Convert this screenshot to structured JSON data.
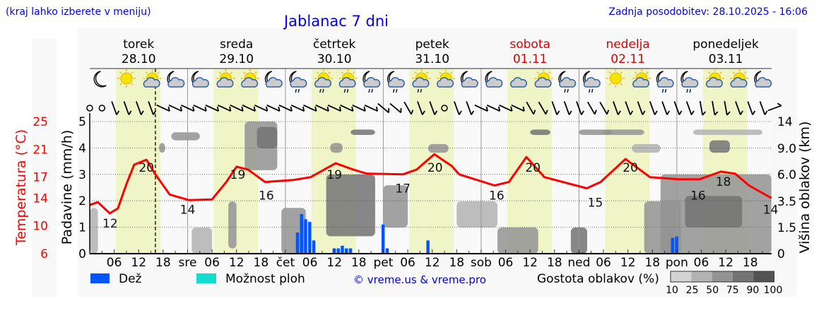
{
  "header": {
    "region_hint": "(kraj lahko izberete v meniju)",
    "title": "Jablanac 7 dni",
    "updated": "Zadnja posodobitev: 28.10.2025 - 16:06"
  },
  "days": [
    {
      "name": "torek",
      "date": "28.10",
      "abbr": "",
      "weekend": false,
      "icons": [
        "moon",
        "sun",
        "sun-cloud",
        "moon-cloud"
      ]
    },
    {
      "name": "sreda",
      "date": "29.10",
      "abbr": "sre",
      "weekend": false,
      "icons": [
        "moon-cloud",
        "sun-cloud",
        "sun-cloud",
        "moon-cloud"
      ]
    },
    {
      "name": "četrtek",
      "date": "30.10",
      "abbr": "čet",
      "weekend": false,
      "icons": [
        "moon-cloud-rain",
        "sun-cloud-rain",
        "sun-cloud-rain",
        "moon-cloud-rain"
      ]
    },
    {
      "name": "petek",
      "date": "31.10",
      "abbr": "pet",
      "weekend": false,
      "icons": [
        "moon-cloud-rain",
        "sun-cloud-rain",
        "sun-cloud",
        "moon-cloud"
      ]
    },
    {
      "name": "sobota",
      "date": "01.11",
      "abbr": "sob",
      "weekend": true,
      "icons": [
        "moon-cloud",
        "cloud",
        "sun-cloud",
        "moon-cloud-rain"
      ]
    },
    {
      "name": "nedelja",
      "date": "02.11",
      "abbr": "ned",
      "weekend": true,
      "icons": [
        "moon-cloud-rain",
        "sun",
        "sun-cloud",
        "moon-cloud-rain"
      ]
    },
    {
      "name": "ponedeljek",
      "date": "03.11",
      "abbr": "pon",
      "weekend": false,
      "icons": [
        "moon-cloud-rain",
        "sun-cloud",
        "sun-cloud",
        "moon-cloud"
      ]
    }
  ],
  "hour_labels": [
    "06",
    "12",
    "18"
  ],
  "colors": {
    "temp": "#ff0000",
    "rain": "#0055ff",
    "showers": "#11ddcc",
    "daylight": "#f0f5c8",
    "weekend": "#dd0000",
    "text_blue": "#0000ee"
  },
  "chart_data": {
    "type": "line",
    "title": "Jablanac 7 dni",
    "x_unit": "hours since 28.10 00:00",
    "xlim": [
      0,
      167.2
    ],
    "now_hour": 16.1,
    "daylight_hours": [
      6.4,
      17.3
    ],
    "temperature": {
      "label": "Temperatura (°C)",
      "ticks": [
        25,
        21,
        17,
        14,
        10,
        6
      ],
      "ylim": [
        6,
        25
      ],
      "points": [
        [
          0,
          13.0
        ],
        [
          2,
          13.4
        ],
        [
          4.9,
          11.8
        ],
        [
          6.9,
          12.5
        ],
        [
          9,
          16
        ],
        [
          10.9,
          18.8
        ],
        [
          13.9,
          19.5
        ],
        [
          16.1,
          17.4
        ],
        [
          19.6,
          14.5
        ],
        [
          24.3,
          13.7
        ],
        [
          30,
          13.8
        ],
        [
          33.5,
          16.3
        ],
        [
          36,
          18.5
        ],
        [
          38.8,
          18.1
        ],
        [
          43,
          16.3
        ],
        [
          50,
          16.6
        ],
        [
          54.2,
          17
        ],
        [
          60.3,
          19
        ],
        [
          64.6,
          18.1
        ],
        [
          68,
          17.5
        ],
        [
          76.8,
          17.4
        ],
        [
          80.2,
          18.1
        ],
        [
          84.5,
          20.3
        ],
        [
          88.8,
          18.6
        ],
        [
          90.6,
          17.4
        ],
        [
          99.3,
          15.8
        ],
        [
          102.8,
          16.3
        ],
        [
          107.1,
          19.9
        ],
        [
          111.5,
          17.0
        ],
        [
          121.9,
          15.4
        ],
        [
          125.3,
          16.3
        ],
        [
          131.4,
          19.6
        ],
        [
          137.4,
          17.0
        ],
        [
          144.4,
          16.7
        ],
        [
          149.6,
          16.7
        ],
        [
          154.8,
          17.8
        ],
        [
          158.3,
          17.5
        ],
        [
          161.7,
          15.8
        ],
        [
          167.2,
          14.0
        ]
      ],
      "labels": [
        [
          5,
          12,
          "below"
        ],
        [
          13.9,
          20,
          "below"
        ],
        [
          24,
          14,
          "below"
        ],
        [
          36.3,
          19,
          "below"
        ],
        [
          43.3,
          16,
          "below"
        ],
        [
          60,
          19,
          "below"
        ],
        [
          76.8,
          17,
          "below"
        ],
        [
          84.7,
          20,
          "below"
        ],
        [
          99.8,
          16,
          "below"
        ],
        [
          108.7,
          20,
          "below"
        ],
        [
          124,
          15,
          "below"
        ],
        [
          132.6,
          20,
          "below"
        ],
        [
          149.2,
          16,
          "below"
        ],
        [
          155.4,
          18,
          "below"
        ],
        [
          167,
          14,
          "below"
        ]
      ]
    },
    "precipitation": {
      "label": "Padavine (mm/h)",
      "ylim": [
        0,
        5
      ],
      "ticks": [
        0,
        1,
        2,
        3,
        4,
        5
      ],
      "rain": [
        [
          51,
          0.8
        ],
        [
          52,
          1.5
        ],
        [
          53,
          1.3
        ],
        [
          54,
          1.2
        ],
        [
          55,
          0.5
        ],
        [
          60,
          0.2
        ],
        [
          61,
          0.2
        ],
        [
          62,
          0.3
        ],
        [
          63,
          0.2
        ],
        [
          64,
          0.2
        ],
        [
          72,
          1.1
        ],
        [
          73,
          0.2
        ],
        [
          83,
          0.5
        ],
        [
          120,
          0.05
        ],
        [
          121,
          0.05
        ],
        [
          143,
          0.6
        ],
        [
          144,
          0.65
        ]
      ]
    },
    "clouds": {
      "label": "Višina oblakov (km)",
      "ticks": [
        14,
        9.0,
        6.0,
        3.5,
        1.5,
        0
      ],
      "tick_labels": [
        "14",
        "9.0",
        "6.0",
        "3.5",
        "1.5",
        "0"
      ],
      "blobs": [
        [
          0,
          2,
          0,
          3,
          25
        ],
        [
          17,
          18.5,
          8.5,
          10,
          50
        ],
        [
          20,
          27,
          10.5,
          12,
          50
        ],
        [
          25,
          30,
          0,
          1.5,
          25
        ],
        [
          34,
          36,
          0.3,
          3.5,
          50
        ],
        [
          38,
          46,
          6.5,
          14,
          50
        ],
        [
          41,
          46,
          9,
          13,
          75
        ],
        [
          47,
          53,
          0,
          3,
          50
        ],
        [
          58,
          70,
          1,
          6,
          75
        ],
        [
          59,
          62,
          8.5,
          10,
          50
        ],
        [
          64,
          70,
          11.5,
          12.5,
          75
        ],
        [
          72,
          78,
          1.5,
          5,
          50
        ],
        [
          83,
          88,
          8.5,
          9.8,
          50
        ],
        [
          90,
          100,
          1.5,
          3.5,
          25
        ],
        [
          100,
          110,
          0,
          1.5,
          50
        ],
        [
          108,
          113,
          11.5,
          12.5,
          75
        ],
        [
          118,
          122,
          0,
          1.5,
          75
        ],
        [
          120,
          128,
          11.5,
          12.5,
          50
        ],
        [
          126,
          136,
          11.5,
          12.5,
          50
        ],
        [
          133,
          140,
          8.5,
          9.8,
          25
        ],
        [
          136,
          145,
          0,
          3.5,
          50
        ],
        [
          140,
          167.2,
          0,
          6,
          50
        ],
        [
          146,
          160,
          1.5,
          4,
          75
        ],
        [
          152,
          157,
          8.5,
          10.5,
          75
        ],
        [
          148,
          165,
          11.5,
          12.5,
          25
        ]
      ]
    },
    "wind_angles_deg": [
      null,
      null,
      0,
      0,
      0,
      0,
      315,
      315,
      315,
      315,
      315,
      315,
      315,
      315,
      315,
      315,
      315,
      315,
      315,
      315,
      315,
      315,
      315,
      315,
      330,
      330,
      350,
      0,
      0,
      null,
      0,
      0,
      315,
      315,
      315,
      315,
      350,
      350,
      0,
      0,
      0,
      350,
      350,
      0,
      0,
      0,
      0,
      0,
      0,
      0,
      10,
      10,
      10,
      0,
      0,
      0,
      270
    ]
  },
  "legend": {
    "rain": "Dež",
    "showers": "Možnost ploh",
    "copyright": "© vreme.us & vreme.pro",
    "cloud_density": "Gostota oblakov (%)",
    "density_labels": [
      "10",
      "25",
      "50",
      "75",
      "90",
      "100"
    ],
    "density_colors": [
      "#d3d3d3",
      "#b3b3b3",
      "#939393",
      "#737373",
      "#535353"
    ]
  }
}
